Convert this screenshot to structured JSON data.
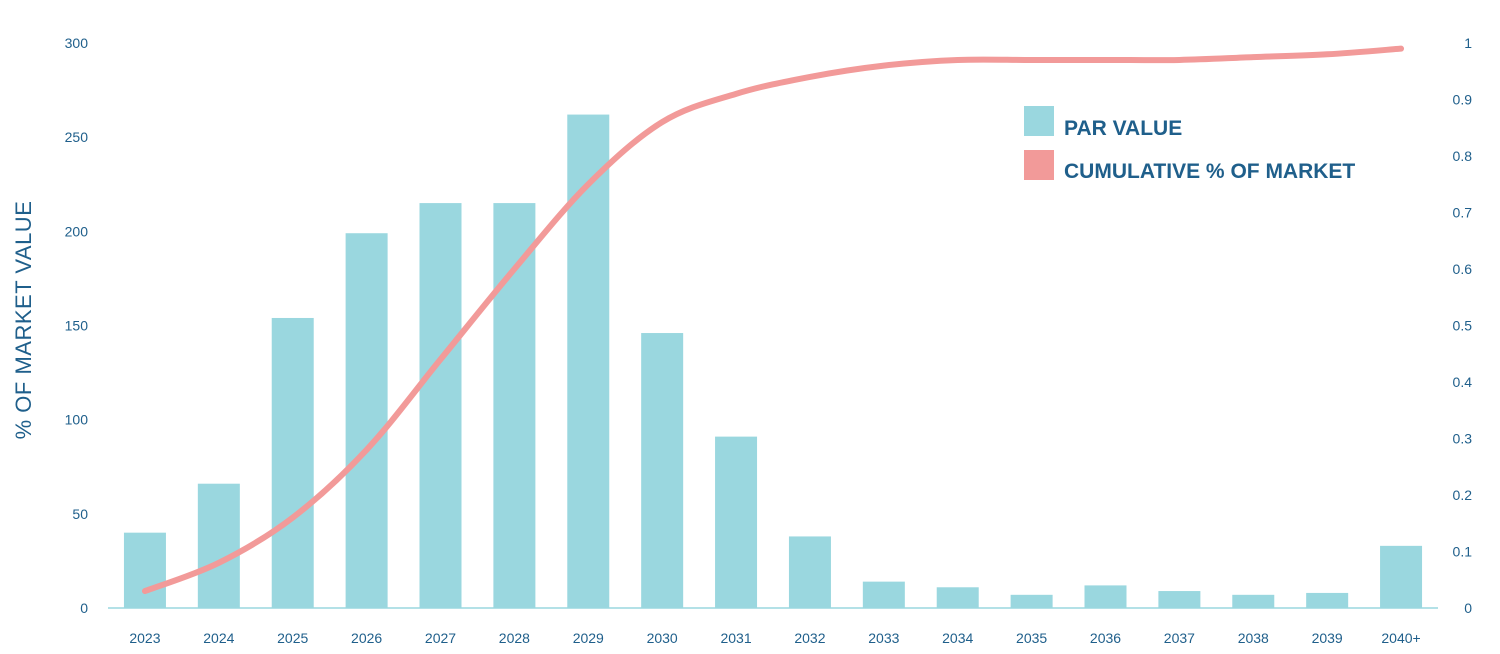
{
  "chart_data": {
    "type": "bar",
    "categories": [
      "2023",
      "2024",
      "2025",
      "2026",
      "2027",
      "2028",
      "2029",
      "2030",
      "2031",
      "2032",
      "2033",
      "2034",
      "2035",
      "2036",
      "2037",
      "2038",
      "2039",
      "2040+"
    ],
    "series": [
      {
        "name": "PAR VALUE",
        "type": "bar",
        "axis": "left",
        "color": "#9ad7df",
        "values": [
          40,
          66,
          154,
          199,
          215,
          215,
          262,
          146,
          91,
          38,
          14,
          11,
          7,
          12,
          9,
          7,
          8,
          33
        ]
      },
      {
        "name": "CUMULATIVE % OF MARKET",
        "type": "line",
        "axis": "right",
        "color": "#f29a99",
        "values": [
          0.03,
          0.08,
          0.16,
          0.28,
          0.44,
          0.6,
          0.75,
          0.86,
          0.91,
          0.94,
          0.96,
          0.97,
          0.97,
          0.97,
          0.97,
          0.975,
          0.98,
          0.99
        ]
      }
    ],
    "ylabel": "% OF MARKET VALUE",
    "xlabel": "",
    "ylim": [
      0,
      300
    ],
    "yticks": [
      "0",
      "50",
      "100",
      "150",
      "200",
      "250",
      "300"
    ],
    "y2lim": [
      0,
      1
    ],
    "y2ticks": [
      "0",
      "0.1",
      "0.2",
      "0.3",
      "0.4",
      "0.5",
      "0.6",
      "0.7",
      "0.8",
      "0.9",
      "1"
    ],
    "legend": {
      "position": "top-right",
      "items": [
        "PAR VALUE",
        "CUMULATIVE % OF MARKET"
      ]
    },
    "grid": false
  }
}
